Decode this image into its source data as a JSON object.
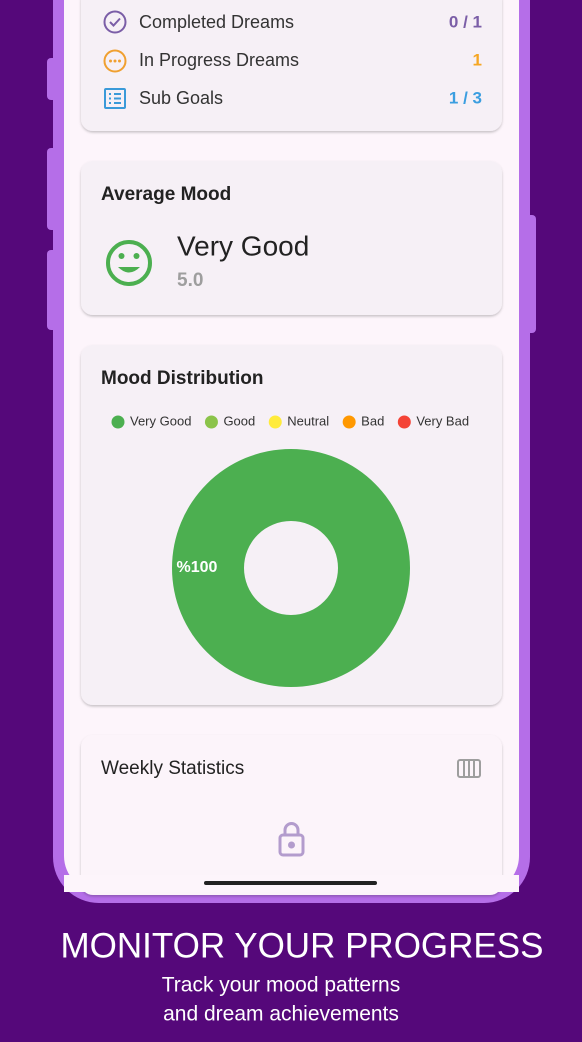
{
  "stats": {
    "rows": [
      {
        "label": "Completed Dreams",
        "value": "0 / 1"
      },
      {
        "label": "In Progress Dreams",
        "value": "1"
      },
      {
        "label": "Sub Goals",
        "value": "1 / 3"
      }
    ]
  },
  "average_mood": {
    "title": "Average Mood",
    "mood": "Very Good",
    "score": "5.0"
  },
  "mood_distribution": {
    "type": "pie",
    "title": "Mood Distribution",
    "categories": [
      "Very Good",
      "Good",
      "Neutral",
      "Bad",
      "Very Bad"
    ],
    "colors": [
      "#4caf50",
      "#8bc34a",
      "#ffeb3b",
      "#ff9800",
      "#f44336"
    ],
    "values": [
      100,
      0,
      0,
      0,
      0
    ],
    "value_labels": [
      "%100",
      null,
      null,
      null,
      null
    ]
  },
  "weekly": {
    "title": "Weekly Statistics"
  },
  "footer": {
    "title": "MONITOR YOUR PROGRESS",
    "lines": [
      "Track your mood patterns",
      "and dream achievements"
    ]
  }
}
